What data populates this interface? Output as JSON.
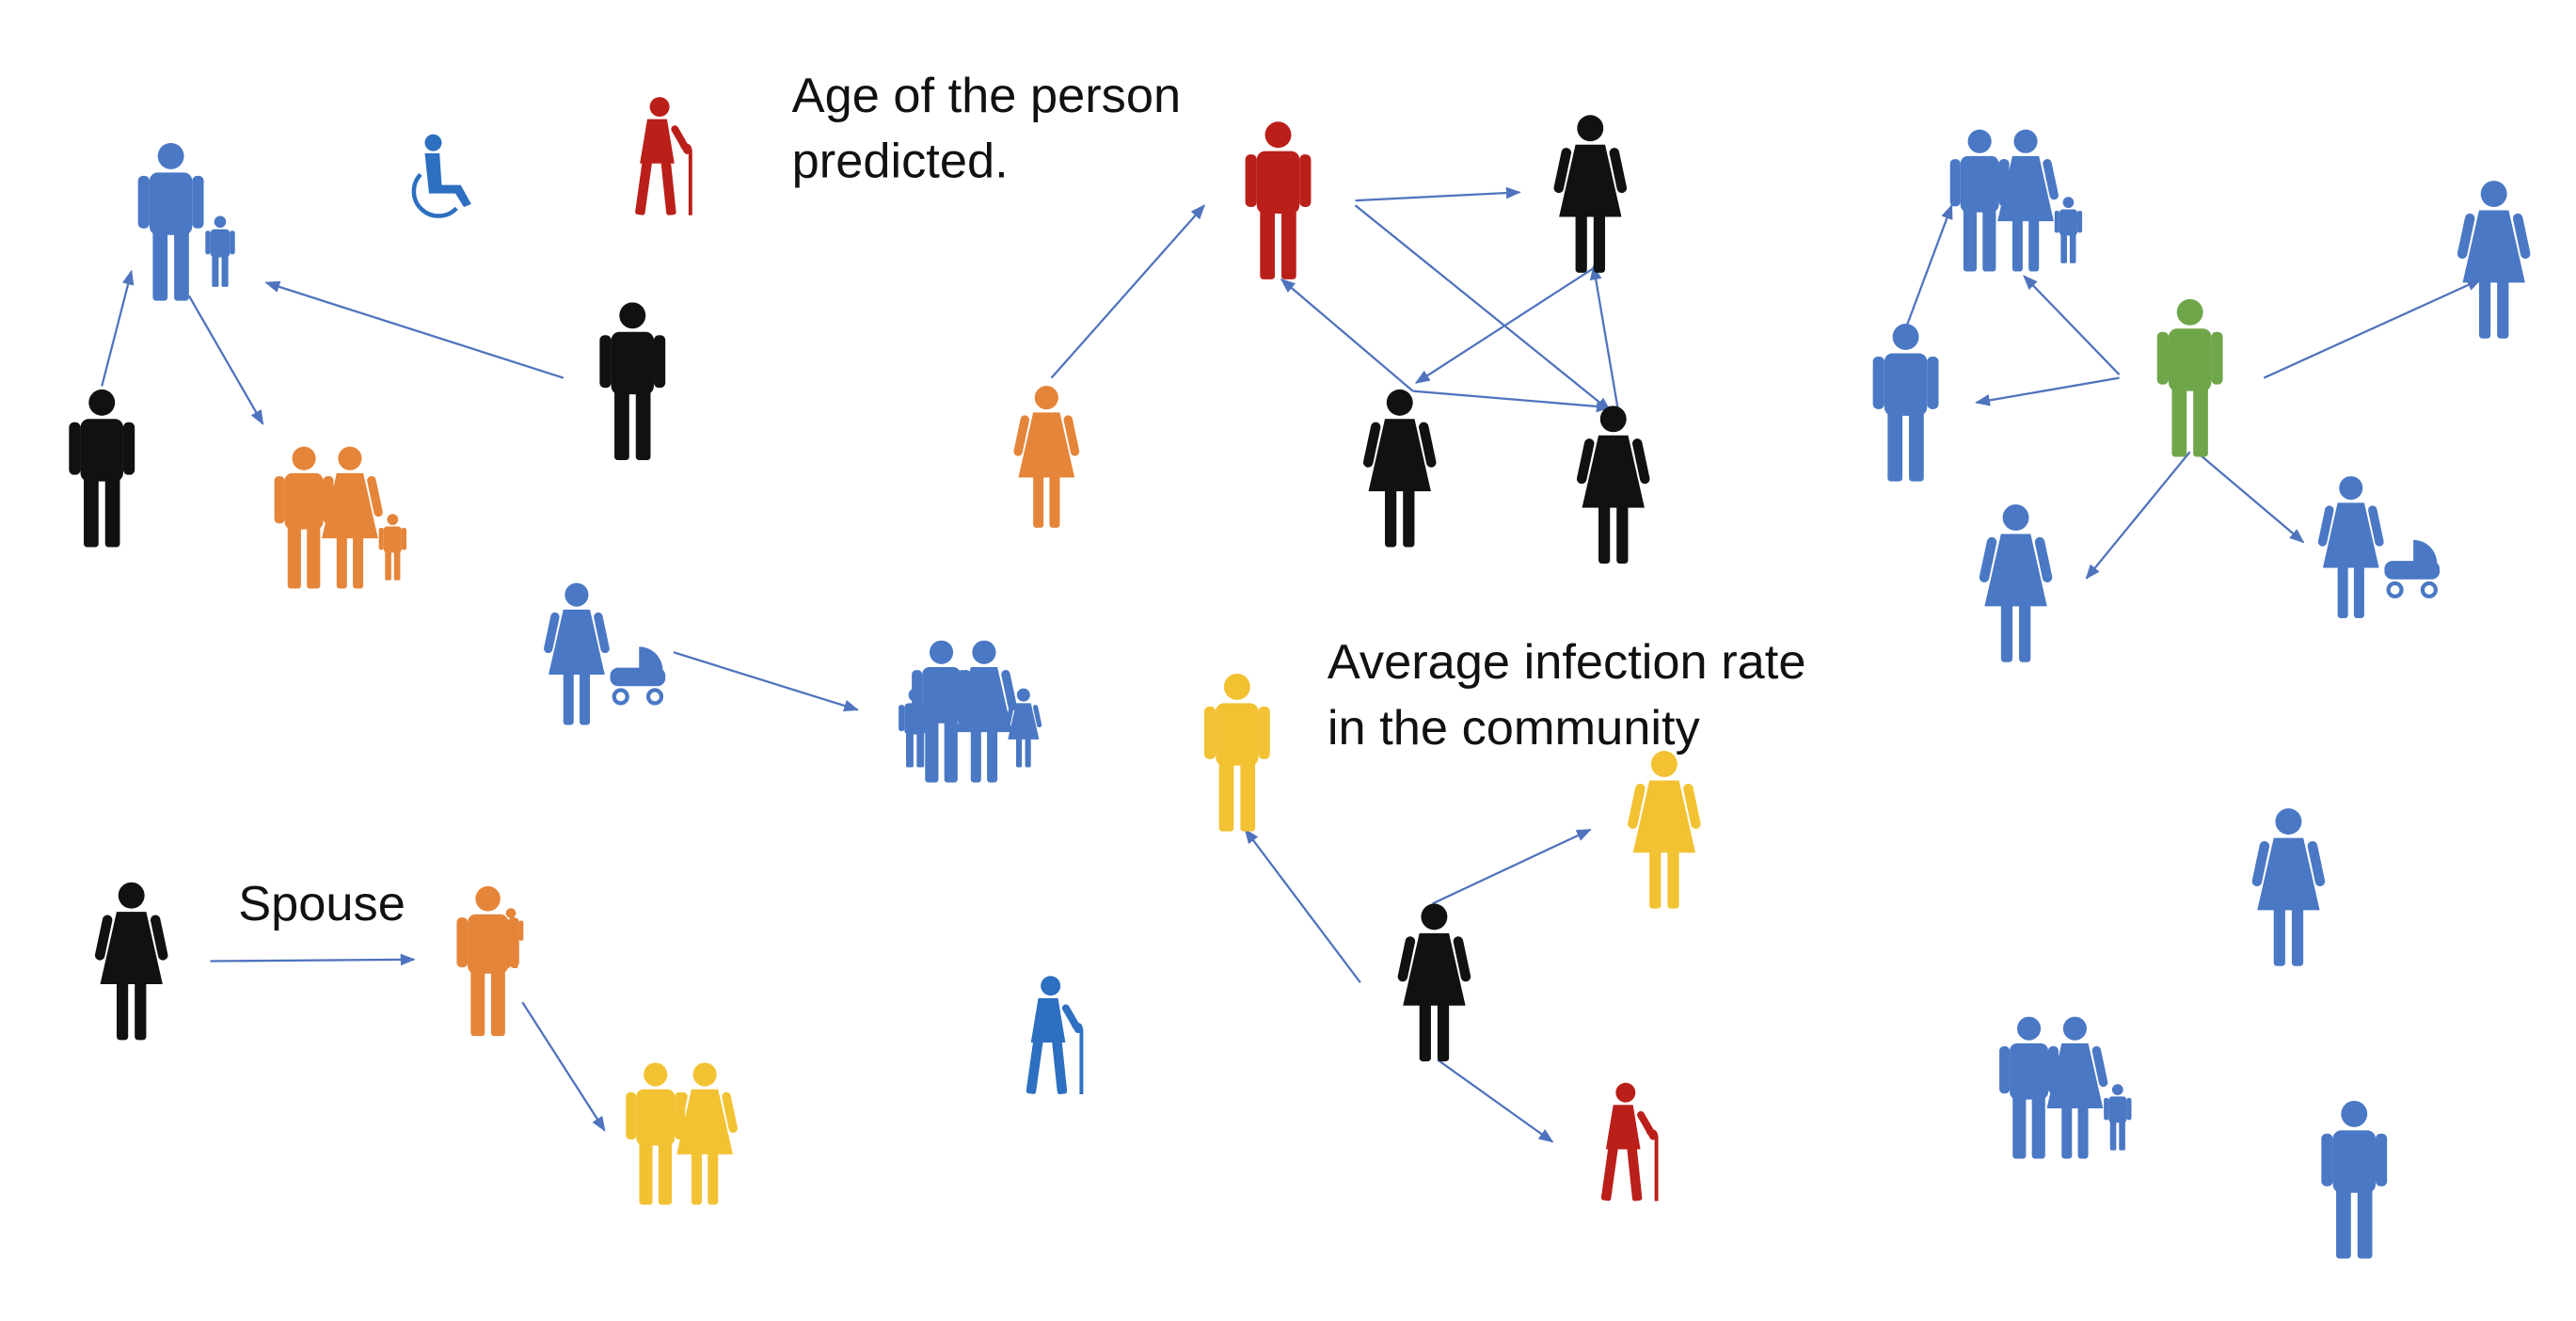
{
  "annotations": [
    {
      "lines": [
        "Age of the person",
        "predicted."
      ]
    },
    {
      "lines": [
        "Average infection rate",
        "in the community"
      ]
    },
    {
      "lines": [
        "Spouse"
      ]
    }
  ]
}
